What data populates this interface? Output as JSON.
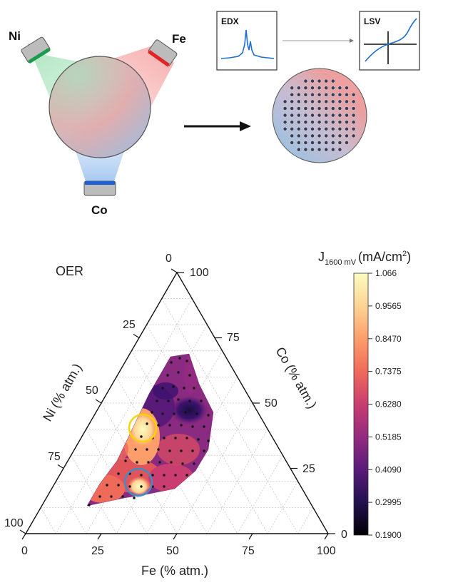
{
  "schematic": {
    "guns": {
      "ni": "Ni",
      "fe": "Fe",
      "co": "Co"
    },
    "edx_title": "EDX",
    "lsv_title": "LSV"
  },
  "ternary": {
    "title": "OER",
    "axis_ni": "Ni (% atm.)",
    "axis_co": "Co (% atm.)",
    "axis_fe": "Fe (% atm.)",
    "ticks_left": [
      "0",
      "25",
      "50",
      "75",
      "100"
    ],
    "ticks_right": [
      "100",
      "75",
      "50",
      "25",
      "0"
    ],
    "ticks_bottom": [
      "0",
      "25",
      "50",
      "75",
      "100"
    ]
  },
  "colorbar": {
    "label_prefix": "J",
    "label_sub": "1600 mV",
    "label_unit": "(mA/cm",
    "label_sup": "2",
    "label_close": ")",
    "ticks": [
      "1.066",
      "0.9565",
      "0.8470",
      "0.7375",
      "0.6280",
      "0.5185",
      "0.4090",
      "0.2995",
      "0.1900"
    ],
    "colors": [
      "#fcfdbf",
      "#fdd495",
      "#fc8961",
      "#e75758",
      "#b73779",
      "#8c2981",
      "#51127c",
      "#221150",
      "#000004"
    ]
  },
  "highlights": {
    "yellow": "#f5d400",
    "blue": "#3a8fc9"
  }
}
